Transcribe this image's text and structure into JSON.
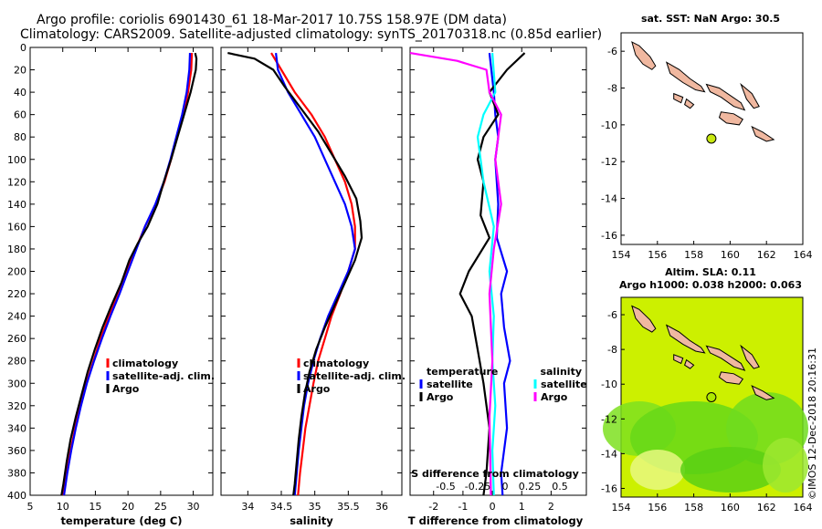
{
  "header": {
    "line1": "Argo profile: coriolis 6901430_61 18-Mar-2017 10.75S 158.97E (DM data)",
    "line2": "Climatology: CARS2009. Satellite-adjusted climatology: synTS_20170318.nc (0.85d earlier)"
  },
  "colors": {
    "climatology": "#ff0000",
    "satellite": "#0000ff",
    "argo": "#000000",
    "sat_salinity": "#00ffff",
    "argo_salinity": "#ff00ff"
  },
  "chart_data": [
    {
      "type": "line",
      "panel": "temperature",
      "xlabel": "temperature (deg C)",
      "xlim": [
        5,
        33
      ],
      "ylim": [
        400,
        0
      ],
      "xticks": [
        5,
        10,
        15,
        20,
        25,
        30
      ],
      "yticks": [
        0,
        20,
        40,
        60,
        80,
        100,
        120,
        140,
        160,
        180,
        200,
        220,
        240,
        260,
        280,
        300,
        320,
        340,
        360,
        380,
        400
      ],
      "legend": [
        "climatology",
        "satellite-adj. clim.",
        "Argo"
      ],
      "series": [
        {
          "name": "climatology",
          "color": "#ff0000",
          "points": [
            [
              29.8,
              5
            ],
            [
              29.7,
              20
            ],
            [
              29.2,
              40
            ],
            [
              28.5,
              60
            ],
            [
              27.5,
              80
            ],
            [
              26.6,
              100
            ],
            [
              25.6,
              120
            ],
            [
              24.3,
              140
            ],
            [
              22.6,
              160
            ],
            [
              21.2,
              180
            ],
            [
              19.8,
              200
            ],
            [
              18.4,
              220
            ],
            [
              17.1,
              240
            ],
            [
              15.8,
              260
            ],
            [
              14.7,
              280
            ],
            [
              13.6,
              300
            ],
            [
              12.7,
              320
            ],
            [
              11.9,
              340
            ],
            [
              11.2,
              360
            ],
            [
              10.6,
              380
            ],
            [
              10.0,
              400
            ]
          ]
        },
        {
          "name": "satellite-adj. clim.",
          "color": "#0000ff",
          "points": [
            [
              29.5,
              5
            ],
            [
              29.4,
              20
            ],
            [
              29.0,
              40
            ],
            [
              28.3,
              60
            ],
            [
              27.4,
              80
            ],
            [
              26.5,
              100
            ],
            [
              25.5,
              120
            ],
            [
              24.2,
              140
            ],
            [
              22.6,
              160
            ],
            [
              21.3,
              180
            ],
            [
              20.0,
              200
            ],
            [
              18.7,
              220
            ],
            [
              17.3,
              240
            ],
            [
              16.0,
              260
            ],
            [
              14.8,
              280
            ],
            [
              13.7,
              300
            ],
            [
              12.8,
              320
            ],
            [
              12.0,
              340
            ],
            [
              11.3,
              360
            ],
            [
              10.7,
              380
            ],
            [
              10.2,
              400
            ]
          ]
        },
        {
          "name": "Argo",
          "color": "#000000",
          "points": [
            [
              30.3,
              5
            ],
            [
              30.5,
              10
            ],
            [
              30.4,
              20
            ],
            [
              29.6,
              40
            ],
            [
              28.6,
              60
            ],
            [
              27.6,
              80
            ],
            [
              26.6,
              100
            ],
            [
              25.5,
              120
            ],
            [
              24.5,
              140
            ],
            [
              23.0,
              160
            ],
            [
              21.5,
              175
            ],
            [
              20.2,
              190
            ],
            [
              19.0,
              210
            ],
            [
              17.5,
              230
            ],
            [
              16.1,
              250
            ],
            [
              14.9,
              270
            ],
            [
              13.8,
              290
            ],
            [
              12.9,
              310
            ],
            [
              12.0,
              330
            ],
            [
              11.2,
              350
            ],
            [
              10.6,
              370
            ],
            [
              10.1,
              390
            ],
            [
              9.8,
              400
            ]
          ]
        }
      ]
    },
    {
      "type": "line",
      "panel": "salinity",
      "xlabel": "salinity",
      "xlim": [
        33.6,
        36.3
      ],
      "ylim": [
        400,
        0
      ],
      "xticks": [
        34,
        34.5,
        35,
        35.5,
        36
      ],
      "legend": [
        "climatology",
        "satellite-adj. clim.",
        "Argo"
      ],
      "series": [
        {
          "name": "climatology",
          "color": "#ff0000",
          "points": [
            [
              34.35,
              5
            ],
            [
              34.5,
              20
            ],
            [
              34.7,
              40
            ],
            [
              34.95,
              60
            ],
            [
              35.15,
              80
            ],
            [
              35.3,
              100
            ],
            [
              35.45,
              120
            ],
            [
              35.55,
              140
            ],
            [
              35.6,
              160
            ],
            [
              35.6,
              180
            ],
            [
              35.5,
              200
            ],
            [
              35.38,
              220
            ],
            [
              35.25,
              240
            ],
            [
              35.15,
              260
            ],
            [
              35.05,
              280
            ],
            [
              34.98,
              300
            ],
            [
              34.92,
              320
            ],
            [
              34.86,
              340
            ],
            [
              34.82,
              360
            ],
            [
              34.78,
              380
            ],
            [
              34.75,
              400
            ]
          ]
        },
        {
          "name": "satellite-adj. clim.",
          "color": "#0000ff",
          "points": [
            [
              34.42,
              5
            ],
            [
              34.45,
              20
            ],
            [
              34.6,
              40
            ],
            [
              34.8,
              60
            ],
            [
              35.0,
              80
            ],
            [
              35.15,
              100
            ],
            [
              35.3,
              120
            ],
            [
              35.45,
              140
            ],
            [
              35.55,
              160
            ],
            [
              35.6,
              180
            ],
            [
              35.5,
              200
            ],
            [
              35.35,
              220
            ],
            [
              35.2,
              240
            ],
            [
              35.08,
              260
            ],
            [
              34.98,
              280
            ],
            [
              34.9,
              300
            ],
            [
              34.84,
              320
            ],
            [
              34.8,
              340
            ],
            [
              34.76,
              360
            ],
            [
              34.73,
              380
            ],
            [
              34.7,
              400
            ]
          ]
        },
        {
          "name": "Argo",
          "color": "#000000",
          "points": [
            [
              33.7,
              5
            ],
            [
              34.1,
              10
            ],
            [
              34.38,
              20
            ],
            [
              34.55,
              35
            ],
            [
              34.8,
              55
            ],
            [
              35.05,
              75
            ],
            [
              35.25,
              95
            ],
            [
              35.45,
              115
            ],
            [
              35.62,
              135
            ],
            [
              35.68,
              155
            ],
            [
              35.7,
              170
            ],
            [
              35.6,
              190
            ],
            [
              35.45,
              210
            ],
            [
              35.3,
              230
            ],
            [
              35.15,
              250
            ],
            [
              35.02,
              270
            ],
            [
              34.92,
              290
            ],
            [
              34.85,
              310
            ],
            [
              34.8,
              330
            ],
            [
              34.76,
              350
            ],
            [
              34.73,
              370
            ],
            [
              34.7,
              390
            ],
            [
              34.68,
              400
            ]
          ]
        }
      ]
    },
    {
      "type": "line",
      "panel": "difference",
      "xlabel": "T difference from climatology",
      "top_axis_label": "S difference from climatology",
      "xlim": [
        -2.8,
        3.2
      ],
      "ylim": [
        400,
        0
      ],
      "xticks": [
        -2,
        -1,
        0,
        1,
        2
      ],
      "top_xticks": [
        "-0.5",
        "-0.25",
        "0",
        "0.25",
        "0.5"
      ],
      "legend_temperature": {
        "heading": "temperature",
        "items": [
          "satellite",
          "Argo"
        ]
      },
      "legend_salinity": {
        "heading": "salinity",
        "items": [
          "satellite",
          "Argo"
        ]
      },
      "series": [
        {
          "name": "temperature satellite",
          "color": "#0000ff",
          "points": [
            [
              -0.1,
              5
            ],
            [
              0.05,
              40
            ],
            [
              0.1,
              60
            ],
            [
              0.2,
              80
            ],
            [
              0.1,
              100
            ],
            [
              0.2,
              140
            ],
            [
              0.15,
              170
            ],
            [
              0.5,
              200
            ],
            [
              0.3,
              220
            ],
            [
              0.4,
              250
            ],
            [
              0.6,
              280
            ],
            [
              0.4,
              300
            ],
            [
              0.5,
              340
            ],
            [
              0.3,
              380
            ],
            [
              0.35,
              400
            ]
          ]
        },
        {
          "name": "temperature Argo",
          "color": "#000000",
          "points": [
            [
              1.1,
              5
            ],
            [
              0.5,
              20
            ],
            [
              -0.1,
              40
            ],
            [
              0.2,
              60
            ],
            [
              -0.3,
              80
            ],
            [
              -0.5,
              100
            ],
            [
              -0.3,
              120
            ],
            [
              -0.4,
              150
            ],
            [
              -0.1,
              170
            ],
            [
              -0.8,
              200
            ],
            [
              -1.1,
              220
            ],
            [
              -0.7,
              240
            ],
            [
              -0.5,
              270
            ],
            [
              -0.3,
              300
            ],
            [
              -0.1,
              340
            ],
            [
              -0.2,
              380
            ],
            [
              -0.3,
              400
            ]
          ]
        },
        {
          "name": "salinity satellite",
          "color": "#00ffff",
          "points": [
            [
              0.0,
              5
            ],
            [
              0.1,
              40
            ],
            [
              -0.3,
              60
            ],
            [
              -0.5,
              80
            ],
            [
              -0.3,
              120
            ],
            [
              0.05,
              160
            ],
            [
              -0.1,
              200
            ],
            [
              0.05,
              240
            ],
            [
              0.0,
              280
            ],
            [
              0.1,
              320
            ],
            [
              0.0,
              360
            ],
            [
              0.05,
              400
            ]
          ]
        },
        {
          "name": "salinity Argo",
          "color": "#ff00ff",
          "points": [
            [
              -2.8,
              5
            ],
            [
              -1.2,
              12
            ],
            [
              -0.2,
              20
            ],
            [
              -0.1,
              40
            ],
            [
              0.3,
              60
            ],
            [
              0.1,
              100
            ],
            [
              0.3,
              140
            ],
            [
              0.05,
              180
            ],
            [
              -0.1,
              220
            ],
            [
              0.0,
              280
            ],
            [
              -0.1,
              330
            ],
            [
              -0.05,
              400
            ]
          ]
        }
      ]
    },
    {
      "type": "scatter",
      "panel": "sst_map",
      "title": "sat. SST: NaN Argo: 30.5",
      "xlim": [
        154,
        164
      ],
      "ylim": [
        -16.5,
        -5
      ],
      "xticks": [
        154,
        156,
        158,
        160,
        162,
        164
      ],
      "yticks": [
        -6,
        -8,
        -10,
        -12,
        -14,
        -16
      ],
      "float_position": {
        "lon": 158.97,
        "lat": -10.75
      }
    },
    {
      "type": "heatmap",
      "panel": "sla_map",
      "title": "Altim. SLA: 0.11",
      "subtitle": "Argo h1000: 0.038 h2000: 0.063",
      "xlim": [
        154,
        164
      ],
      "ylim": [
        -16.5,
        -5
      ],
      "xticks": [
        154,
        156,
        158,
        160,
        162,
        164
      ],
      "yticks": [
        -6,
        -8,
        -10,
        -12,
        -14,
        -16
      ],
      "float_position": {
        "lon": 158.97,
        "lat": -10.75
      }
    }
  ],
  "footer": {
    "credit": "©IMOS 12-Dec-2018 20:16:31"
  }
}
